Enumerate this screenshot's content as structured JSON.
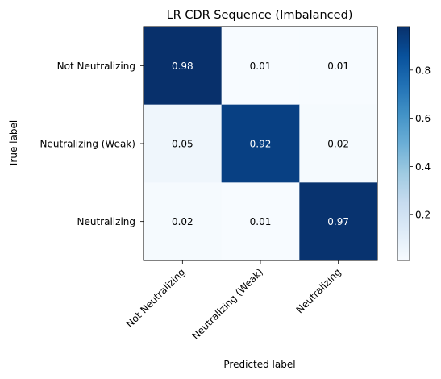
{
  "chart_data": {
    "type": "heatmap",
    "title": "LR CDR Sequence (Imbalanced)",
    "xlabel": "Predicted label",
    "ylabel": "True label",
    "x_categories": [
      "Not Neutralizing",
      "Neutralizing (Weak)",
      "Neutralizing"
    ],
    "y_categories": [
      "Not Neutralizing",
      "Neutralizing (Weak)",
      "Neutralizing"
    ],
    "values": [
      [
        0.98,
        0.01,
        0.01
      ],
      [
        0.05,
        0.92,
        0.02
      ],
      [
        0.02,
        0.01,
        0.97
      ]
    ],
    "value_labels": [
      [
        "0.98",
        "0.01",
        "0.01"
      ],
      [
        "0.05",
        "0.92",
        "0.02"
      ],
      [
        "0.02",
        "0.01",
        "0.97"
      ]
    ],
    "colormap": "Blues",
    "color_range": [
      0.01,
      0.98
    ],
    "colorbar_ticks": [
      0.2,
      0.4,
      0.6,
      0.8
    ],
    "colorbar_tick_labels": [
      "0.2",
      "0.4",
      "0.6",
      "0.8"
    ],
    "text_color_light": "#ffffff",
    "text_color_dark": "#000000",
    "grid": false
  }
}
